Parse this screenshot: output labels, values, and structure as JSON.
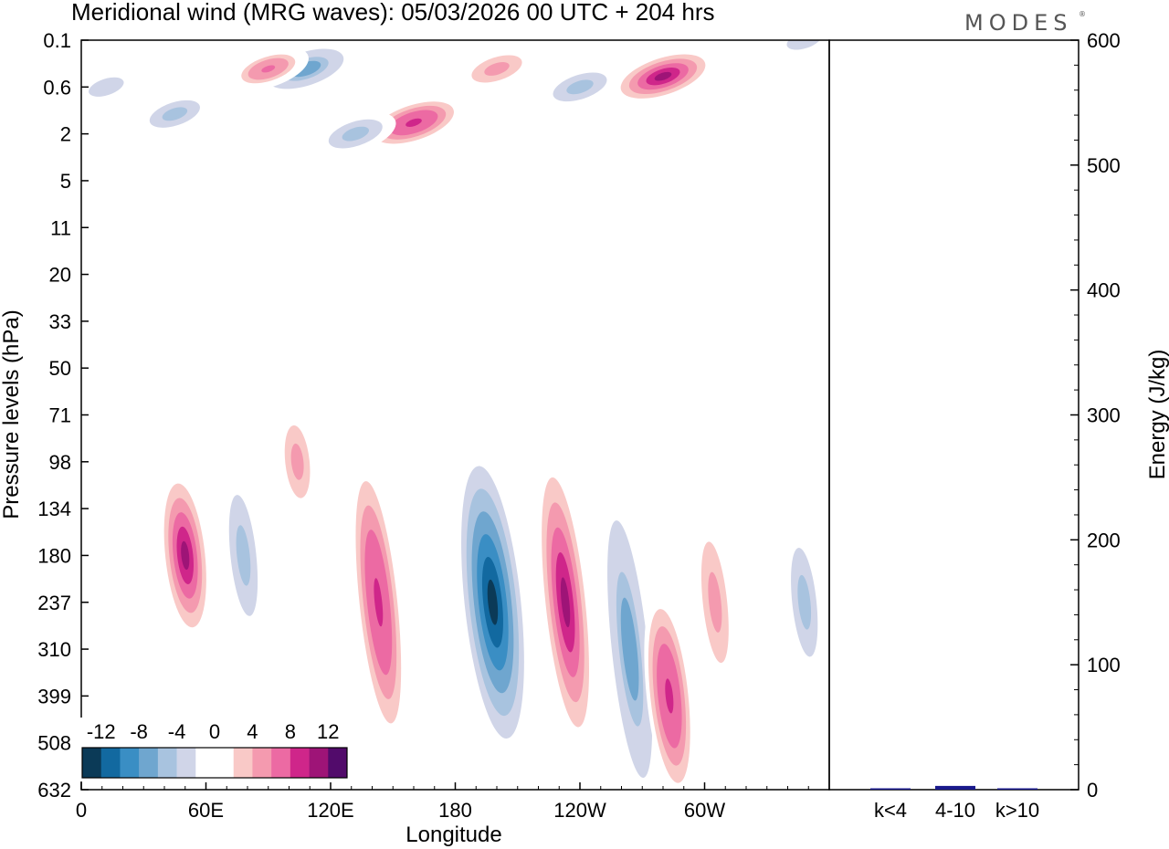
{
  "chart_data": [
    {
      "type": "heatmap",
      "title": "Meridional wind (MRG waves):  05/03/2026  00 UTC  + 204 hrs",
      "xlabel": "Longitude",
      "ylabel": "Pressure levels (hPa)",
      "x_ticks": [
        "0",
        "60E",
        "120E",
        "180",
        "120W",
        "60W"
      ],
      "x_tick_degrees": [
        0,
        60,
        120,
        180,
        240,
        300
      ],
      "x_range_degrees": [
        0,
        360
      ],
      "y_ticks": [
        "0.1",
        "0.6",
        "2",
        "5",
        "11",
        "20",
        "33",
        "50",
        "71",
        "98",
        "134",
        "180",
        "237",
        "310",
        "399",
        "508",
        "632"
      ],
      "colorbar": {
        "tick_labels": [
          "-12",
          "-8",
          "-4",
          "0",
          "4",
          "8",
          "12"
        ],
        "colors": [
          "#0b3a57",
          "#1269a0",
          "#3a8ec4",
          "#6fa6cf",
          "#a8c3df",
          "#d0d5e8",
          "#ffffff",
          "#ffffff",
          "#f9c9c7",
          "#f49aaf",
          "#ec6aa3",
          "#cf268a",
          "#9e1477",
          "#520b6b"
        ]
      },
      "features": [
        {
          "label": "stratosphere-cell",
          "sign": "negative",
          "lon": 108,
          "level": "0.3",
          "magnitude": 8
        },
        {
          "label": "stratosphere-cell",
          "sign": "positive",
          "lon": 90,
          "level": "0.3",
          "magnitude": 6
        },
        {
          "label": "stratosphere-cell",
          "sign": "positive",
          "lon": 160,
          "level": "1.5",
          "magnitude": 9
        },
        {
          "label": "stratosphere-cell",
          "sign": "negative",
          "lon": 45,
          "level": "1.2",
          "magnitude": 5
        },
        {
          "label": "stratosphere-cell",
          "sign": "negative",
          "lon": 12,
          "level": "0.6",
          "magnitude": 4
        },
        {
          "label": "stratosphere-cell",
          "sign": "negative",
          "lon": 132,
          "level": "2",
          "magnitude": 6
        },
        {
          "label": "stratosphere-cell",
          "sign": "negative",
          "lon": 240,
          "level": "0.6",
          "magnitude": 6
        },
        {
          "label": "stratosphere-cell",
          "sign": "positive",
          "lon": 280,
          "level": "0.4",
          "magnitude": 10
        },
        {
          "label": "stratosphere-cell",
          "sign": "positive",
          "lon": 200,
          "level": "0.3",
          "magnitude": 5
        },
        {
          "label": "stratosphere-cell",
          "sign": "negative",
          "lon": 348,
          "level": "0.1",
          "magnitude": 4
        },
        {
          "label": "troposphere-cell",
          "sign": "positive",
          "lon": 50,
          "level": "180",
          "magnitude": 10
        },
        {
          "label": "troposphere-cell",
          "sign": "negative",
          "lon": 78,
          "level": "180",
          "magnitude": 6
        },
        {
          "label": "troposphere-cell",
          "sign": "positive",
          "lon": 104,
          "level": "98",
          "magnitude": 5
        },
        {
          "label": "troposphere-cell",
          "sign": "positive",
          "lon": 143,
          "level": "237",
          "magnitude": 9
        },
        {
          "label": "troposphere-cell",
          "sign": "negative",
          "lon": 198,
          "level": "237",
          "magnitude": 14
        },
        {
          "label": "troposphere-cell",
          "sign": "positive",
          "lon": 233,
          "level": "237",
          "magnitude": 10
        },
        {
          "label": "troposphere-cell",
          "sign": "negative",
          "lon": 264,
          "level": "310",
          "magnitude": 8
        },
        {
          "label": "troposphere-cell",
          "sign": "positive",
          "lon": 283,
          "level": "399",
          "magnitude": 9
        },
        {
          "label": "troposphere-cell",
          "sign": "positive",
          "lon": 305,
          "level": "237",
          "magnitude": 5
        },
        {
          "label": "troposphere-cell",
          "sign": "negative",
          "lon": 348,
          "level": "237",
          "magnitude": 5
        }
      ]
    },
    {
      "type": "bar",
      "ylabel": "Energy (J/kg)",
      "categories": [
        "k<4",
        "4-10",
        "k>10"
      ],
      "values": [
        0.4,
        3,
        0.3
      ],
      "ylim": [
        0,
        600
      ],
      "y_ticks": [
        "0",
        "100",
        "200",
        "300",
        "400",
        "500",
        "600"
      ],
      "bar_color": "#1a1a8c"
    }
  ],
  "logo": {
    "text": "MODES",
    "mark": "®"
  }
}
